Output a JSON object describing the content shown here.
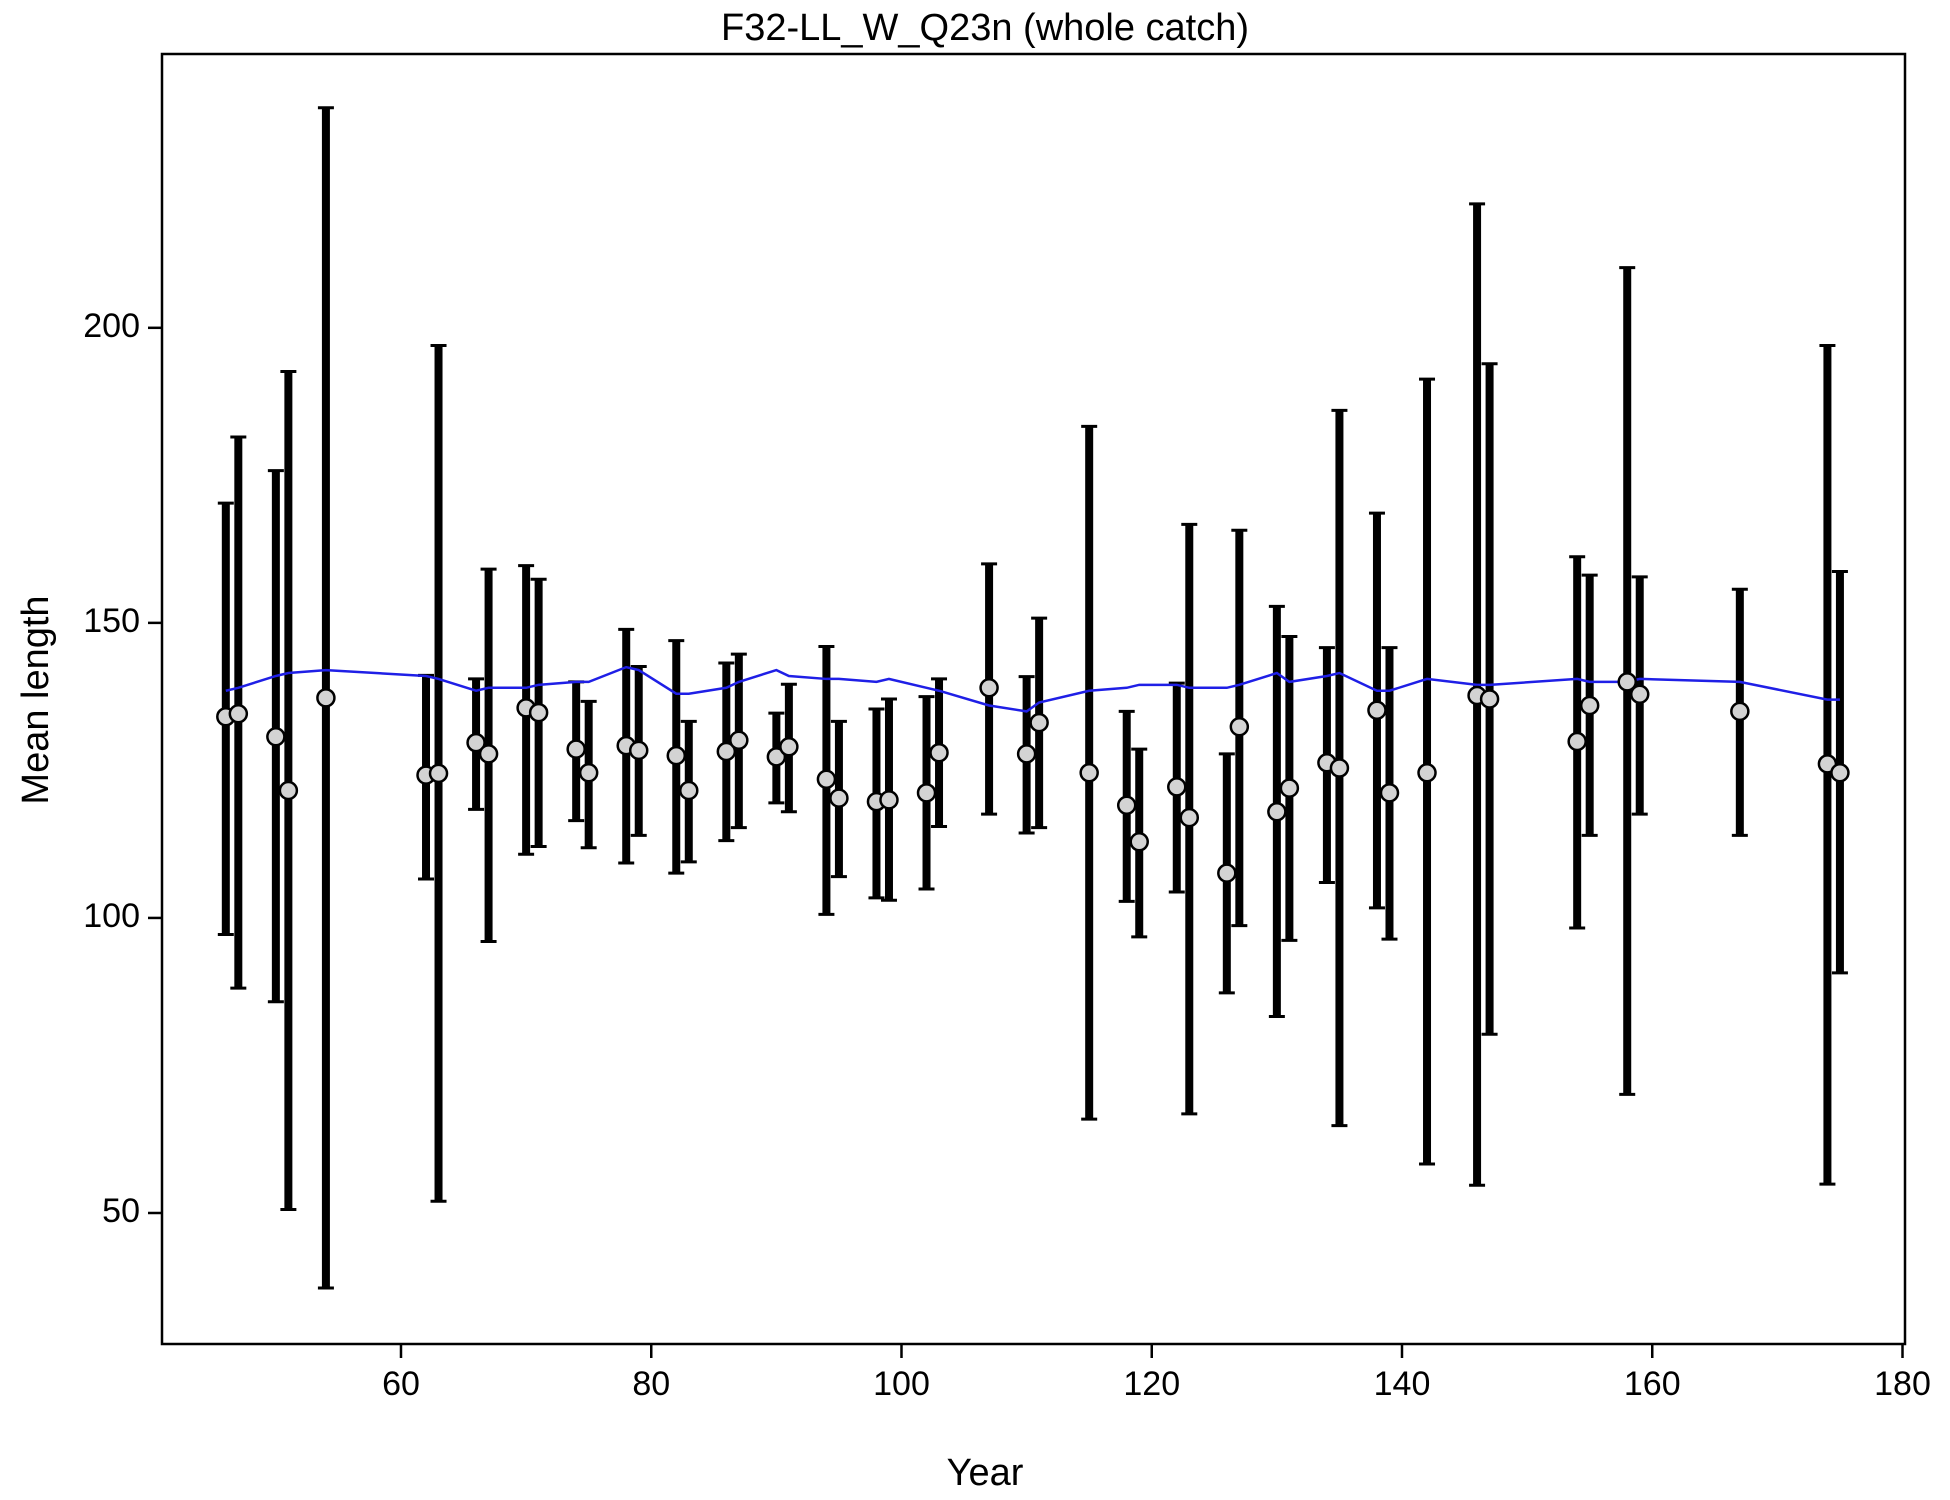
{
  "chart_data": {
    "type": "errorbar",
    "title": "F32-LL_W_Q23n (whole catch)",
    "x_label": "Year",
    "y_label": "Mean length",
    "x": [
      46,
      47,
      50,
      51,
      54,
      62,
      63,
      66,
      67,
      70,
      71,
      74,
      75,
      78,
      79,
      82,
      83,
      86,
      87,
      90,
      91,
      94,
      95,
      98,
      99,
      102,
      103,
      107,
      110,
      111,
      115,
      118,
      119,
      122,
      123,
      126,
      127,
      130,
      131,
      134,
      135,
      138,
      139,
      142,
      146,
      147,
      154,
      155,
      158,
      159,
      167,
      174,
      175
    ],
    "values": [
      134.1,
      134.6,
      130.7,
      121.6,
      137.3,
      124.2,
      124.5,
      129.7,
      127.8,
      135.6,
      134.8,
      128.6,
      124.6,
      129.2,
      128.4,
      127.5,
      121.6,
      128.2,
      130.1,
      127.3,
      129,
      123.5,
      120.3,
      119.7,
      120,
      121.2,
      128,
      139,
      127.8,
      133.1,
      124.6,
      119.1,
      112.9,
      122.2,
      117,
      107.6,
      132.4,
      118,
      122,
      126.3,
      125.4,
      135.2,
      121.2,
      124.6,
      137.7,
      137.1,
      129.9,
      136,
      140,
      137.9,
      135,
      126.1,
      124.6
    ],
    "lower": [
      97.2,
      88.1,
      85.8,
      50.6,
      37.3,
      106.6,
      52,
      118.4,
      96,
      110.8,
      112.1,
      116.5,
      111.9,
      109.3,
      114,
      107.6,
      109.5,
      113.1,
      115.3,
      119.5,
      118,
      100.6,
      107,
      103.4,
      103,
      104.9,
      115.5,
      117.6,
      114.4,
      115.3,
      65.9,
      102.8,
      96.8,
      104.4,
      66.8,
      87.3,
      98.7,
      83.3,
      96.2,
      106,
      64.8,
      101.7,
      96.4,
      58.3,
      54.7,
      80.3,
      98.3,
      114,
      70.1,
      117.6,
      114,
      54.9,
      90.7
    ],
    "upper": [
      170.3,
      181.5,
      175.8,
      192.6,
      237.3,
      141.1,
      197,
      140.5,
      159.1,
      159.7,
      157.4,
      140,
      136.7,
      148.9,
      142.6,
      147,
      133.3,
      143.2,
      144.7,
      134.7,
      139.6,
      146,
      133.3,
      135.4,
      137.1,
      137.5,
      140.5,
      160,
      140.9,
      150.8,
      183.3,
      135,
      128.6,
      139.8,
      166.7,
      127.8,
      165.7,
      152.8,
      147.7,
      145.8,
      186,
      168.6,
      145.8,
      191.3,
      221,
      193.9,
      161.2,
      158.1,
      210.2,
      157.8,
      155.7,
      197,
      158.7
    ],
    "expected": [
      138.5,
      139,
      141,
      141.5,
      142,
      141,
      140.5,
      138.5,
      139,
      139,
      139.5,
      140,
      140,
      142.5,
      142,
      138,
      138,
      139,
      140,
      142,
      141,
      140.5,
      140.5,
      140,
      140.5,
      139,
      138.5,
      136,
      135,
      136.5,
      138.5,
      139,
      139.5,
      139.5,
      139,
      139,
      139.5,
      141.5,
      140,
      141,
      141.5,
      138.5,
      138.5,
      140.5,
      139.5,
      139.5,
      140.5,
      140,
      140,
      140.5,
      140,
      137,
      137
    ],
    "point_color": "#d3d3d3",
    "bar_color": "#000000",
    "line_color": "#1f1fe6",
    "xlim": [
      40.9,
      180.2
    ],
    "ylim": [
      27.8,
      246.4
    ],
    "xticks": [
      60,
      80,
      100,
      120,
      140,
      160,
      180
    ],
    "yticks": [
      50,
      100,
      150,
      200
    ]
  }
}
